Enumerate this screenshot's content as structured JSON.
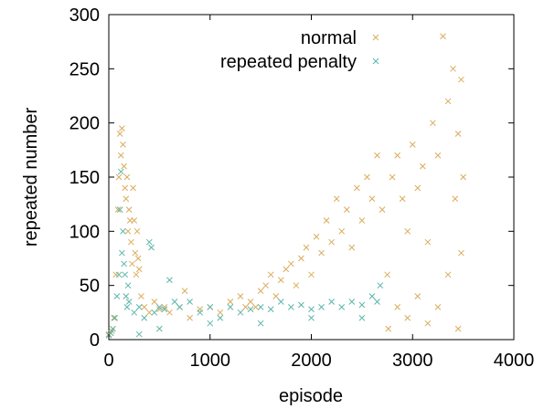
{
  "chart_data": {
    "type": "scatter",
    "title": "",
    "xlabel": "episode",
    "ylabel": "repeated number",
    "xlim": [
      0,
      4000
    ],
    "ylim": [
      0,
      300
    ],
    "xticks": [
      0,
      1000,
      2000,
      3000,
      4000
    ],
    "yticks": [
      0,
      50,
      100,
      150,
      200,
      250,
      300
    ],
    "xtick_labels": [
      "0",
      "1000",
      "2000",
      "3000",
      "4000"
    ],
    "ytick_labels": [
      "0",
      "50",
      "100",
      "150",
      "200",
      "250",
      "300"
    ],
    "grid": false,
    "legend_position": "top-right",
    "marker": "x",
    "points_note": "Dense scatter; points below are representative samples estimated from the plot.",
    "series": [
      {
        "name": "normal",
        "color": "#d9ac5c",
        "points": [
          [
            0,
            5
          ],
          [
            30,
            8
          ],
          [
            50,
            20
          ],
          [
            70,
            60
          ],
          [
            90,
            120
          ],
          [
            100,
            150
          ],
          [
            110,
            190
          ],
          [
            120,
            170
          ],
          [
            130,
            195
          ],
          [
            140,
            180
          ],
          [
            150,
            160
          ],
          [
            160,
            140
          ],
          [
            170,
            130
          ],
          [
            180,
            150
          ],
          [
            190,
            100
          ],
          [
            200,
            120
          ],
          [
            210,
            110
          ],
          [
            220,
            90
          ],
          [
            230,
            70
          ],
          [
            240,
            140
          ],
          [
            250,
            110
          ],
          [
            260,
            80
          ],
          [
            270,
            60
          ],
          [
            280,
            100
          ],
          [
            290,
            75
          ],
          [
            300,
            65
          ],
          [
            320,
            40
          ],
          [
            350,
            30
          ],
          [
            400,
            25
          ],
          [
            450,
            35
          ],
          [
            500,
            28
          ],
          [
            550,
            30
          ],
          [
            600,
            25
          ],
          [
            700,
            30
          ],
          [
            750,
            45
          ],
          [
            800,
            20
          ],
          [
            900,
            28
          ],
          [
            1000,
            30
          ],
          [
            1100,
            25
          ],
          [
            1200,
            35
          ],
          [
            1300,
            40
          ],
          [
            1350,
            30
          ],
          [
            1400,
            35
          ],
          [
            1450,
            30
          ],
          [
            1500,
            45
          ],
          [
            1550,
            50
          ],
          [
            1600,
            60
          ],
          [
            1650,
            40
          ],
          [
            1700,
            55
          ],
          [
            1750,
            65
          ],
          [
            1800,
            70
          ],
          [
            1850,
            50
          ],
          [
            1900,
            75
          ],
          [
            1950,
            85
          ],
          [
            2000,
            60
          ],
          [
            2050,
            95
          ],
          [
            2100,
            80
          ],
          [
            2150,
            110
          ],
          [
            2200,
            90
          ],
          [
            2250,
            130
          ],
          [
            2300,
            100
          ],
          [
            2350,
            120
          ],
          [
            2400,
            85
          ],
          [
            2450,
            140
          ],
          [
            2500,
            110
          ],
          [
            2550,
            150
          ],
          [
            2600,
            130
          ],
          [
            2650,
            170
          ],
          [
            2700,
            120
          ],
          [
            2750,
            60
          ],
          [
            2800,
            150
          ],
          [
            2850,
            170
          ],
          [
            2900,
            130
          ],
          [
            2950,
            100
          ],
          [
            3000,
            180
          ],
          [
            3050,
            140
          ],
          [
            3100,
            160
          ],
          [
            3150,
            90
          ],
          [
            3200,
            200
          ],
          [
            3250,
            170
          ],
          [
            3300,
            280
          ],
          [
            3350,
            220
          ],
          [
            3400,
            250
          ],
          [
            3420,
            130
          ],
          [
            3450,
            190
          ],
          [
            3480,
            240
          ],
          [
            3500,
            150
          ],
          [
            2760,
            10
          ],
          [
            2850,
            30
          ],
          [
            2950,
            20
          ],
          [
            3050,
            40
          ],
          [
            3150,
            15
          ],
          [
            3250,
            30
          ],
          [
            3350,
            60
          ],
          [
            3450,
            10
          ],
          [
            3480,
            80
          ]
        ]
      },
      {
        "name": "repeated penalty",
        "color": "#5cb5a9",
        "points": [
          [
            0,
            4
          ],
          [
            20,
            6
          ],
          [
            40,
            10
          ],
          [
            60,
            20
          ],
          [
            80,
            40
          ],
          [
            100,
            60
          ],
          [
            110,
            120
          ],
          [
            120,
            155
          ],
          [
            130,
            80
          ],
          [
            140,
            100
          ],
          [
            150,
            70
          ],
          [
            160,
            60
          ],
          [
            170,
            40
          ],
          [
            180,
            30
          ],
          [
            190,
            50
          ],
          [
            200,
            35
          ],
          [
            250,
            25
          ],
          [
            300,
            30
          ],
          [
            350,
            20
          ],
          [
            400,
            90
          ],
          [
            420,
            85
          ],
          [
            450,
            25
          ],
          [
            500,
            30
          ],
          [
            550,
            28
          ],
          [
            600,
            55
          ],
          [
            650,
            35
          ],
          [
            700,
            30
          ],
          [
            800,
            35
          ],
          [
            900,
            25
          ],
          [
            1000,
            30
          ],
          [
            1100,
            20
          ],
          [
            1200,
            30
          ],
          [
            1300,
            25
          ],
          [
            1400,
            28
          ],
          [
            1500,
            30
          ],
          [
            1600,
            28
          ],
          [
            1700,
            35
          ],
          [
            1800,
            30
          ],
          [
            1900,
            32
          ],
          [
            2000,
            28
          ],
          [
            2100,
            30
          ],
          [
            2200,
            35
          ],
          [
            2300,
            30
          ],
          [
            2400,
            35
          ],
          [
            2500,
            32
          ],
          [
            2600,
            40
          ],
          [
            2650,
            35
          ],
          [
            2680,
            50
          ],
          [
            1500,
            15
          ],
          [
            2000,
            20
          ],
          [
            2500,
            20
          ],
          [
            1000,
            15
          ],
          [
            500,
            10
          ],
          [
            300,
            5
          ]
        ]
      }
    ]
  }
}
